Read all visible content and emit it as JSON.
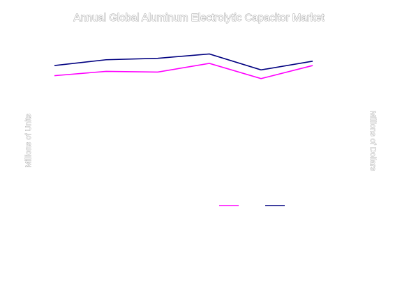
{
  "chart_data": {
    "type": "line",
    "title": "Annual Global Aluminum Electrolytic Capacitor Market",
    "xlabel": "",
    "ylabel": "Millions of Units",
    "y2label": "Millions of Dollars",
    "x": [
      "1",
      "2",
      "3",
      "4",
      "5",
      "6"
    ],
    "ylim": [
      0,
      10
    ],
    "y2lim": [
      0,
      10
    ],
    "grid": false,
    "legend_position": "bottom-right",
    "series": [
      {
        "key": "units",
        "values": [
          6.7,
          7.0,
          6.95,
          7.55,
          6.5,
          7.4
        ],
        "color": "#ff00ff",
        "axis": "left"
      },
      {
        "key": "dollars",
        "values": [
          7.4,
          7.8,
          7.9,
          8.2,
          7.1,
          7.7
        ],
        "color": "#000080",
        "axis": "right"
      }
    ]
  }
}
